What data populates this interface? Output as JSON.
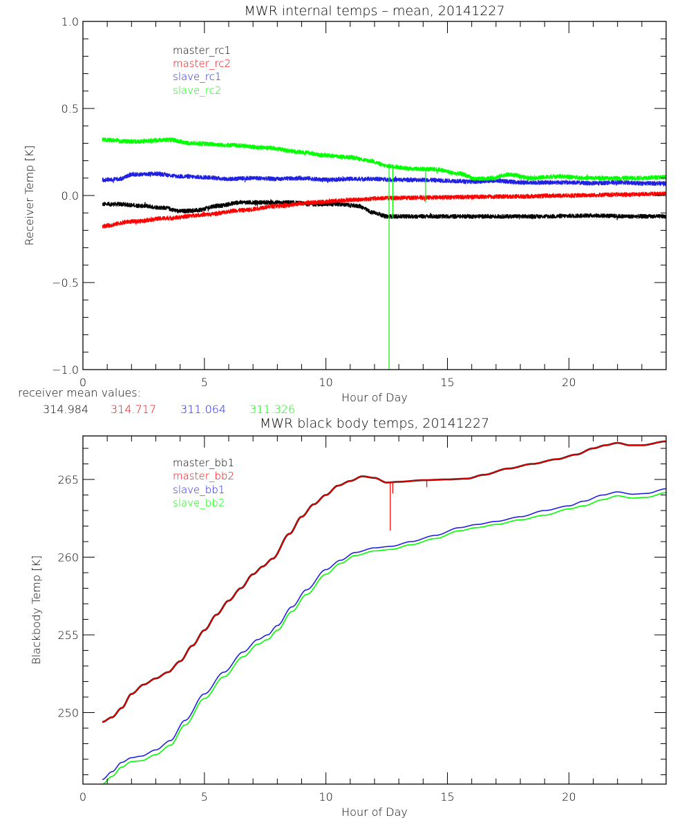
{
  "chart_data": [
    {
      "type": "line",
      "title": "MWR internal temps – mean, 20141227",
      "xlabel": "Hour of Day",
      "ylabel": "Receiver Temp [K]",
      "xlim": [
        0,
        24
      ],
      "ylim": [
        -1.0,
        1.0
      ],
      "xticks": [
        "0",
        "5",
        "10",
        "15",
        "20"
      ],
      "xtick_values": [
        0,
        5,
        10,
        15,
        20
      ],
      "yticks": [
        "-1.0",
        "-0.5",
        "0.0",
        "0.5",
        "1.0"
      ],
      "ytick_values": [
        -1.0,
        -0.5,
        0.0,
        0.5,
        1.0
      ],
      "grid": false,
      "legend_position": "top-left",
      "noise_amplitude": 0.012,
      "series": [
        {
          "name": "master_rc1",
          "color": "#000000",
          "x": [
            0.8,
            1.5,
            2.5,
            3.3,
            4.0,
            4.7,
            5.5,
            6.5,
            7.5,
            8.5,
            9.5,
            10.5,
            11.3,
            12.0,
            12.5,
            13.5,
            15,
            17,
            19,
            21,
            22.5,
            24
          ],
          "y": [
            -0.05,
            -0.05,
            -0.06,
            -0.07,
            -0.09,
            -0.085,
            -0.06,
            -0.04,
            -0.04,
            -0.04,
            -0.05,
            -0.05,
            -0.06,
            -0.1,
            -0.12,
            -0.12,
            -0.12,
            -0.12,
            -0.12,
            -0.115,
            -0.12,
            -0.12
          ]
        },
        {
          "name": "master_rc2",
          "color": "#ff0000",
          "x": [
            0.8,
            2,
            3.5,
            5,
            6.5,
            8,
            9.5,
            11,
            12.5,
            14,
            16,
            18,
            20,
            22,
            24
          ],
          "y": [
            -0.175,
            -0.15,
            -0.13,
            -0.11,
            -0.085,
            -0.06,
            -0.04,
            -0.025,
            -0.015,
            -0.012,
            -0.008,
            -0.005,
            0.0,
            0.005,
            0.01
          ]
        },
        {
          "name": "slave_rc1",
          "color": "#2020e0",
          "x": [
            0.8,
            1.5,
            2.0,
            3.0,
            4.0,
            5.0,
            6.0,
            7.0,
            8.0,
            9.0,
            10.0,
            11.0,
            12.0,
            13.0,
            14.0,
            15.0,
            16.0,
            17.0,
            18.0,
            19.0,
            20.0,
            21.0,
            22.0,
            23.0,
            24.0
          ],
          "y": [
            0.09,
            0.095,
            0.12,
            0.125,
            0.11,
            0.105,
            0.095,
            0.1,
            0.095,
            0.1,
            0.09,
            0.095,
            0.095,
            0.09,
            0.09,
            0.085,
            0.08,
            0.085,
            0.075,
            0.075,
            0.075,
            0.07,
            0.075,
            0.07,
            0.07
          ]
        },
        {
          "name": "slave_rc2",
          "color": "#00ff00",
          "x": [
            0.8,
            2.0,
            3.5,
            4.5,
            6.0,
            7.5,
            9.0,
            10.0,
            11.0,
            11.8,
            12.5,
            13.5,
            14.5,
            15.5,
            16.2,
            16.8,
            17.5,
            18.5,
            19.5,
            21.0,
            22.5,
            24.0
          ],
          "y": [
            0.32,
            0.31,
            0.32,
            0.3,
            0.29,
            0.275,
            0.25,
            0.23,
            0.22,
            0.2,
            0.17,
            0.155,
            0.15,
            0.125,
            0.095,
            0.1,
            0.12,
            0.1,
            0.11,
            0.1,
            0.1,
            0.105
          ]
        }
      ],
      "spikes": [
        {
          "series": "slave_rc2",
          "x": 12.6,
          "y_top": 0.17,
          "y_bottom": -1.0
        },
        {
          "series": "slave_rc2",
          "x": 12.75,
          "y_top": 0.17,
          "y_bottom": -0.13
        },
        {
          "series": "slave_rc2",
          "x": 14.1,
          "y_top": 0.15,
          "y_bottom": -0.04
        }
      ],
      "annotation": {
        "label": "receiver mean values:",
        "values": [
          {
            "series": "master_rc1",
            "value": "314.984",
            "color": "#000000"
          },
          {
            "series": "master_rc2",
            "value": "314.717",
            "color": "#ff0000"
          },
          {
            "series": "slave_rc1",
            "value": "311.064",
            "color": "#2020e0"
          },
          {
            "series": "slave_rc2",
            "value": "311.326",
            "color": "#00ff00"
          }
        ]
      }
    },
    {
      "type": "line",
      "title": "MWR black body temps, 20141227",
      "xlabel": "Hour of Day",
      "ylabel": "Blackbody Temp [K]",
      "xlim": [
        0,
        24
      ],
      "ylim": [
        245.4,
        267.8
      ],
      "xticks": [
        "0",
        "5",
        "10",
        "15",
        "20"
      ],
      "xtick_values": [
        0,
        5,
        10,
        15,
        20
      ],
      "yticks": [
        "250",
        "255",
        "260",
        "265"
      ],
      "ytick_values": [
        250,
        255,
        260,
        265
      ],
      "grid": false,
      "legend_position": "top-left",
      "series": [
        {
          "name": "master_bb1",
          "color": "#000000",
          "x": [
            0.8,
            1.2,
            1.6,
            2.0,
            2.5,
            3.0,
            3.5,
            4.0,
            4.5,
            5.0,
            5.5,
            6.0,
            6.5,
            7.0,
            7.4,
            7.8,
            8.5,
            9.0,
            9.5,
            10.0,
            10.5,
            11.0,
            11.5,
            12.0,
            12.5,
            13.0,
            14.0,
            15.0,
            15.8,
            16.5,
            17.5,
            18.5,
            19.5,
            20.3,
            21.0,
            21.5,
            22.0,
            22.5,
            23.0,
            24.0
          ],
          "y": [
            249.4,
            249.7,
            250.3,
            251.2,
            251.8,
            252.2,
            252.6,
            253.3,
            254.3,
            255.3,
            256.3,
            257.2,
            258.0,
            258.9,
            259.4,
            259.9,
            261.5,
            262.6,
            263.4,
            264.0,
            264.6,
            264.9,
            265.2,
            265.1,
            264.8,
            264.85,
            264.95,
            265.0,
            265.05,
            265.3,
            265.7,
            266.0,
            266.3,
            266.6,
            267.0,
            267.2,
            267.35,
            267.2,
            267.2,
            267.45
          ]
        },
        {
          "name": "master_bb2",
          "color": "#ff0000",
          "x": [
            0.8,
            1.2,
            1.6,
            2.0,
            2.5,
            3.0,
            3.5,
            4.0,
            4.5,
            5.0,
            5.5,
            6.0,
            6.5,
            7.0,
            7.4,
            7.8,
            8.5,
            9.0,
            9.5,
            10.0,
            10.5,
            11.0,
            11.5,
            12.0,
            12.5,
            13.0,
            14.0,
            15.0,
            15.8,
            16.5,
            17.5,
            18.5,
            19.5,
            20.3,
            21.0,
            21.5,
            22.0,
            22.5,
            23.0,
            24.0
          ],
          "y": [
            249.4,
            249.7,
            250.3,
            251.2,
            251.8,
            252.2,
            252.6,
            253.3,
            254.3,
            255.3,
            256.3,
            257.2,
            258.0,
            258.9,
            259.4,
            259.9,
            261.5,
            262.6,
            263.4,
            264.0,
            264.6,
            264.9,
            265.2,
            265.1,
            264.8,
            264.85,
            264.95,
            265.0,
            265.05,
            265.3,
            265.7,
            266.0,
            266.3,
            266.6,
            267.0,
            267.2,
            267.35,
            267.2,
            267.2,
            267.45
          ]
        },
        {
          "name": "slave_bb1",
          "color": "#2020e0",
          "x": [
            0.8,
            1.2,
            1.6,
            2.0,
            2.4,
            3.0,
            3.6,
            4.2,
            5.0,
            5.8,
            6.6,
            7.2,
            7.6,
            8.0,
            8.6,
            9.2,
            10.0,
            10.6,
            11.2,
            12.0,
            12.7,
            13.5,
            14.5,
            15.5,
            16.2,
            17.0,
            18.0,
            19.0,
            20.0,
            20.6,
            21.4,
            22.0,
            22.6,
            23.2,
            24.0
          ],
          "y": [
            245.7,
            246.2,
            246.8,
            247.1,
            247.2,
            247.6,
            248.2,
            249.5,
            251.2,
            252.6,
            253.9,
            254.7,
            255.0,
            255.6,
            256.8,
            257.9,
            259.2,
            259.8,
            260.3,
            260.6,
            260.7,
            261.0,
            261.4,
            261.9,
            262.1,
            262.3,
            262.6,
            263.0,
            263.3,
            263.6,
            264.0,
            264.2,
            264.05,
            264.1,
            264.4
          ]
        },
        {
          "name": "slave_bb2",
          "color": "#00ff00",
          "x": [
            0.8,
            1.2,
            1.6,
            2.0,
            2.4,
            3.0,
            3.6,
            4.2,
            5.0,
            5.8,
            6.6,
            7.2,
            7.6,
            8.0,
            8.6,
            9.2,
            10.0,
            10.6,
            11.2,
            12.0,
            12.7,
            13.5,
            14.5,
            15.5,
            16.2,
            17.0,
            18.0,
            19.0,
            20.0,
            20.6,
            21.4,
            22.0,
            22.6,
            23.2,
            24.0
          ],
          "y": [
            245.4,
            245.9,
            246.5,
            246.85,
            246.9,
            247.3,
            247.9,
            249.2,
            250.9,
            252.3,
            253.6,
            254.4,
            254.7,
            255.3,
            256.5,
            257.6,
            258.9,
            259.6,
            260.1,
            260.4,
            260.5,
            260.8,
            261.2,
            261.7,
            261.9,
            262.1,
            262.4,
            262.7,
            263.1,
            263.3,
            263.7,
            263.95,
            263.8,
            263.85,
            264.15
          ]
        }
      ],
      "spikes": [
        {
          "series": "master_bb2",
          "x": 12.65,
          "y_top": 264.85,
          "y_bottom": 261.7
        },
        {
          "series": "master_bb2",
          "x": 12.75,
          "y_top": 264.85,
          "y_bottom": 264.1
        },
        {
          "series": "master_bb2",
          "x": 14.15,
          "y_top": 264.95,
          "y_bottom": 264.5
        }
      ]
    }
  ]
}
